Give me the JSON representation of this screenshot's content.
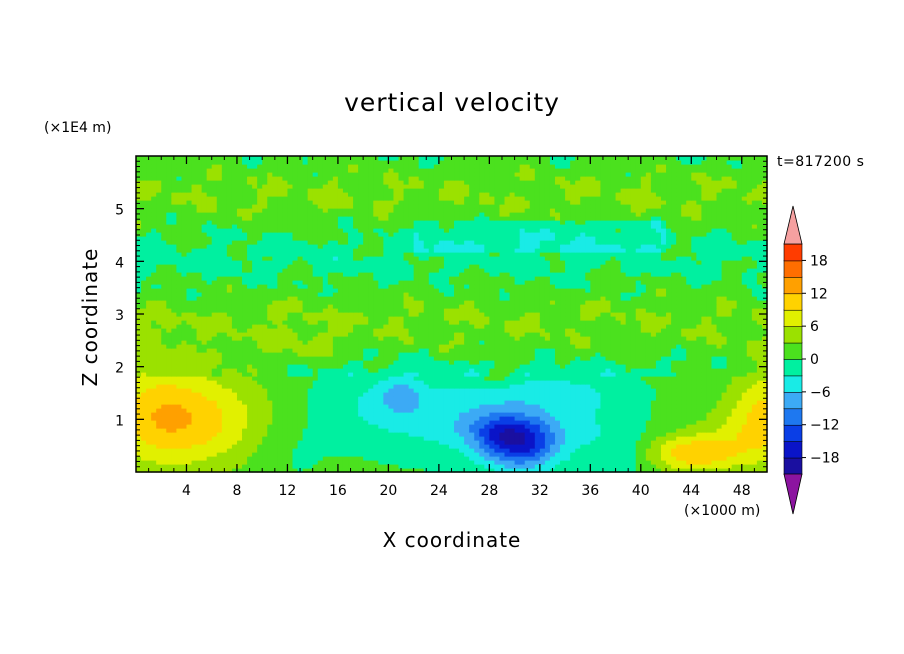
{
  "chart_data": {
    "type": "heatmap",
    "title": "vertical velocity",
    "xlabel": "X coordinate",
    "ylabel": "Z coordinate",
    "x_unit": "(×1000 m)",
    "y_unit": "(×1E4 m)",
    "time_label": "t=817200 s",
    "xlim": [
      0,
      50
    ],
    "ylim": [
      0,
      6
    ],
    "x_ticks": [
      4,
      8,
      12,
      16,
      20,
      24,
      28,
      32,
      36,
      40,
      44,
      48
    ],
    "y_ticks": [
      1,
      2,
      3,
      4,
      5
    ],
    "colorbar": {
      "levels": [
        -21,
        -18,
        -15,
        -12,
        -9,
        -6,
        -3,
        0,
        3,
        6,
        9,
        12,
        15,
        18,
        21
      ],
      "labels": [
        -18,
        -12,
        -6,
        0,
        6,
        12,
        18
      ],
      "colors": [
        "#5a0f9e",
        "#1a0fa0",
        "#0a14c8",
        "#0a3ee6",
        "#1e78f0",
        "#3caaf5",
        "#19ebe6",
        "#00f0a0",
        "#4be11e",
        "#9be100",
        "#e1f000",
        "#ffd200",
        "#ffa000",
        "#ff6e00",
        "#ff3c00",
        "#e6141e"
      ],
      "over_color": "#f5a0a0",
      "under_color": "#8c14a0"
    },
    "features": [
      {
        "sign": "positive",
        "x": 4,
        "z": 1.0,
        "peak": 11
      },
      {
        "sign": "positive",
        "x": 44,
        "z": 0.4,
        "peak": 10
      },
      {
        "sign": "positive",
        "x": 49,
        "z": 1.0,
        "peak": 8
      },
      {
        "sign": "negative",
        "x": 30.5,
        "z": 0.6,
        "peak": -14
      },
      {
        "sign": "negative",
        "x": 21,
        "z": 1.5,
        "peak": -8
      },
      {
        "sign": "negative",
        "x": 26,
        "z": 1.2,
        "peak": -4
      }
    ]
  }
}
